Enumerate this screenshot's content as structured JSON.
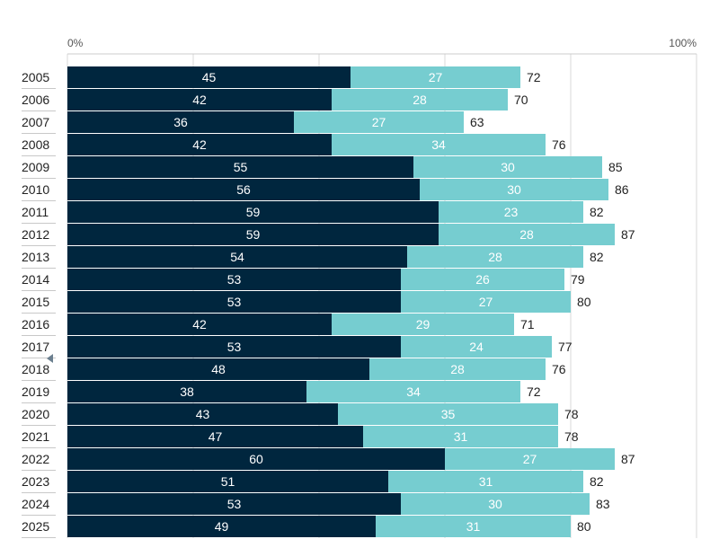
{
  "chart_data": {
    "type": "bar",
    "orientation": "horizontal",
    "stacked": true,
    "title": "",
    "xlabel": "",
    "ylabel": "",
    "xlim": [
      0,
      100
    ],
    "x_tick_labels": [
      "0%",
      "100%"
    ],
    "grid": true,
    "legend": "none",
    "categories": [
      "2005",
      "2006",
      "2007",
      "2008",
      "2009",
      "2010",
      "2011",
      "2012",
      "2013",
      "2014",
      "2015",
      "2016",
      "2017",
      "2018",
      "2019",
      "2020",
      "2021",
      "2022",
      "2023",
      "2024",
      "2025"
    ],
    "series": [
      {
        "color": "#00263e",
        "values": [
          45,
          42,
          36,
          42,
          55,
          56,
          59,
          59,
          54,
          53,
          53,
          42,
          53,
          48,
          38,
          43,
          47,
          60,
          51,
          53,
          49
        ]
      },
      {
        "color": "#76cdd0",
        "values": [
          27,
          28,
          27,
          34,
          30,
          30,
          23,
          28,
          28,
          26,
          27,
          29,
          24,
          28,
          34,
          35,
          31,
          27,
          31,
          30,
          31
        ]
      }
    ],
    "totals": [
      72,
      70,
      63,
      76,
      85,
      86,
      82,
      87,
      82,
      79,
      80,
      71,
      77,
      76,
      72,
      78,
      78,
      87,
      82,
      83,
      80
    ]
  }
}
